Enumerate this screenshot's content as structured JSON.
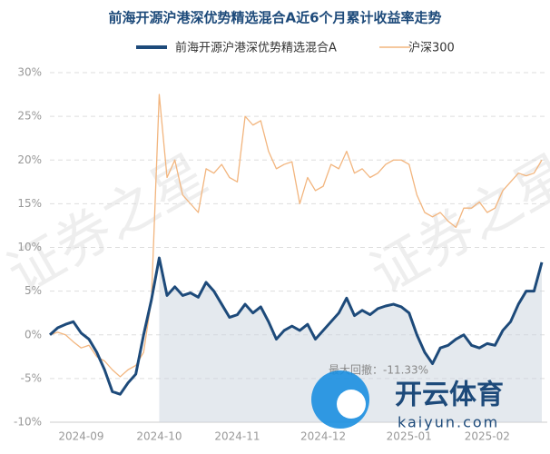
{
  "chart_data": {
    "type": "line",
    "title": "前海开源沪港深优势精选混合A近6个月累计收益率走势",
    "annotation": "最大回撤：-11.33%",
    "watermark": "证券之星",
    "logo_text": "开云体育",
    "logo_url": "kaiyun.com",
    "categories": [
      null,
      null,
      null,
      null,
      "2024-09",
      null,
      null,
      null,
      null,
      null,
      null,
      null,
      null,
      null,
      "2024-10",
      null,
      null,
      null,
      null,
      null,
      null,
      null,
      null,
      null,
      "2024-11",
      null,
      null,
      null,
      null,
      null,
      null,
      null,
      null,
      null,
      null,
      "2024-12",
      null,
      null,
      null,
      null,
      null,
      null,
      null,
      null,
      null,
      null,
      "2025-01",
      null,
      null,
      null,
      null,
      null,
      null,
      null,
      null,
      null,
      "2025-02",
      null,
      null,
      null,
      null,
      null,
      null,
      null
    ],
    "series": [
      {
        "name": "前海开源沪港深优势精选混合A",
        "color": "#1d4a7a",
        "values": [
          0,
          0.8,
          1.2,
          1.5,
          0.2,
          -0.5,
          -2,
          -4,
          -6.5,
          -6.8,
          -5.5,
          -4.5,
          0,
          4,
          8.8,
          4.5,
          5.5,
          4.5,
          4.8,
          4.3,
          6,
          5,
          3.5,
          2,
          2.3,
          3.5,
          2.5,
          3.2,
          1.5,
          -0.5,
          0.5,
          1,
          0.5,
          1.2,
          -0.5,
          0.5,
          1.5,
          2.5,
          4.2,
          2.2,
          2.8,
          2.3,
          3,
          3.3,
          3.5,
          3.2,
          2.5,
          0,
          -2,
          -3.3,
          -1.5,
          -1.2,
          -0.5,
          0,
          -1.2,
          -1.5,
          -1,
          -1.2,
          0.5,
          1.5,
          3.5,
          5,
          5,
          8.3
        ]
      },
      {
        "name": "沪深300",
        "color": "#f2b57e",
        "values": [
          0,
          0.3,
          0,
          -0.8,
          -1.5,
          -1.2,
          -2.5,
          -3,
          -4,
          -4.8,
          -4,
          -3.5,
          -2,
          4,
          27.5,
          18,
          20,
          16,
          15,
          14,
          19,
          18.5,
          19.5,
          18,
          17.5,
          25,
          24,
          24.5,
          21,
          19,
          19.5,
          19.8,
          15,
          18,
          16.5,
          17,
          19.5,
          19,
          21,
          18.5,
          19,
          18,
          18.5,
          19.5,
          20,
          20,
          19.5,
          16,
          14,
          13.5,
          14,
          13,
          12.3,
          14.5,
          14.5,
          15.2,
          14,
          14.5,
          16.5,
          17.5,
          18.5,
          18.2,
          18.5,
          20
        ]
      }
    ],
    "ylim": [
      -10,
      30
    ],
    "yticks": [
      {
        "value": -10,
        "label": "-10%"
      },
      {
        "value": -5,
        "label": "-5%"
      },
      {
        "value": 0,
        "label": "0%"
      },
      {
        "value": 5,
        "label": "5%"
      },
      {
        "value": 10,
        "label": "10%"
      },
      {
        "value": 15,
        "label": "15%"
      },
      {
        "value": 20,
        "label": "20%"
      },
      {
        "value": 25,
        "label": "25%"
      },
      {
        "value": 30,
        "label": "30%"
      }
    ],
    "grid": true
  }
}
